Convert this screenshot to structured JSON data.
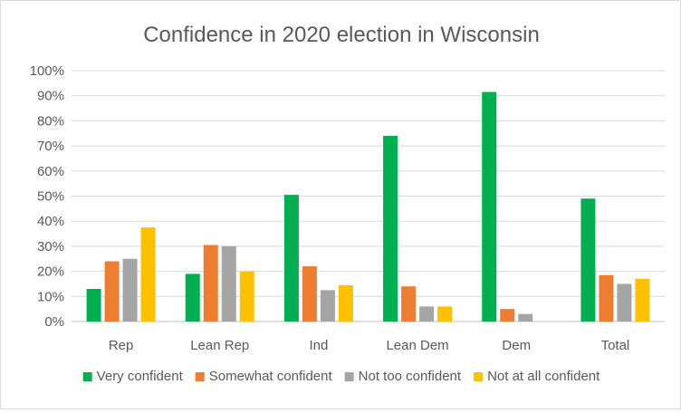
{
  "chart_data": {
    "type": "bar",
    "title": "Confidence in 2020 election in Wisconsin",
    "xlabel": "",
    "ylabel": "",
    "ylim": [
      0,
      100
    ],
    "y_ticks": [
      "0%",
      "10%",
      "20%",
      "30%",
      "40%",
      "50%",
      "60%",
      "70%",
      "80%",
      "90%",
      "100%"
    ],
    "grid": true,
    "legend_position": "bottom",
    "categories": [
      "Rep",
      "Lean Rep",
      "Ind",
      "Lean Dem",
      "Dem",
      "Total"
    ],
    "series": [
      {
        "name": "Very confident",
        "color": "#00b050",
        "values": [
          13,
          19,
          50.5,
          74,
          91.5,
          49
        ]
      },
      {
        "name": "Somewhat confident",
        "color": "#ed7d31",
        "values": [
          24,
          30.5,
          22,
          14,
          5,
          18.5
        ]
      },
      {
        "name": "Not too confident",
        "color": "#a5a5a5",
        "values": [
          25,
          30,
          12.5,
          6,
          3,
          15
        ]
      },
      {
        "name": "Not at all confident",
        "color": "#ffc000",
        "values": [
          37.5,
          20,
          14.5,
          6,
          0,
          17
        ]
      }
    ]
  }
}
